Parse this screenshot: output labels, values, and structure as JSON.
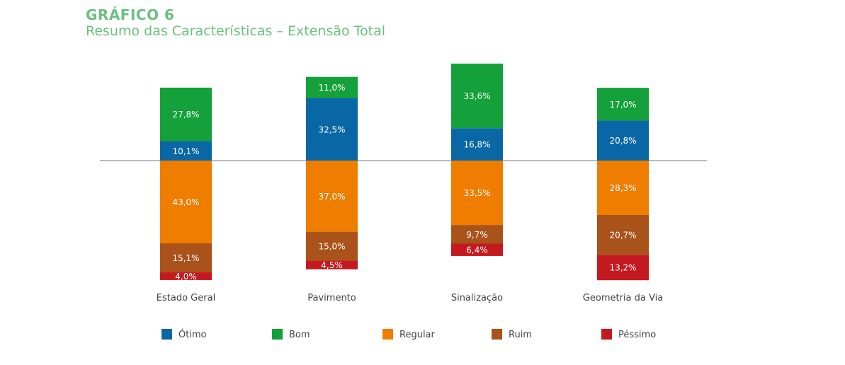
{
  "chart_data": {
    "type": "bar",
    "stacked": true,
    "diverging": true,
    "title": "GRÁFICO 6",
    "subtitle": "Resumo das Características – Extensão Total",
    "categories": [
      "Estado Geral",
      "Pavimento",
      "Sinalização",
      "Geometria da Via"
    ],
    "series": [
      {
        "name": "Ótimo",
        "color": "#0a67a5",
        "direction": "up",
        "values": [
          10.1,
          32.5,
          16.8,
          20.8
        ],
        "labels": [
          "10,1%",
          "32,5%",
          "16,8%",
          "20,8%"
        ]
      },
      {
        "name": "Bom",
        "color": "#14a03a",
        "direction": "up",
        "values": [
          27.8,
          11.0,
          33.6,
          17.0
        ],
        "labels": [
          "27,8%",
          "11,0%",
          "33,6%",
          "17,0%"
        ]
      },
      {
        "name": "Regular",
        "color": "#ee7d00",
        "direction": "down",
        "values": [
          43.0,
          37.0,
          33.5,
          28.3
        ],
        "labels": [
          "43,0%",
          "37,0%",
          "33,5%",
          "28,3%"
        ]
      },
      {
        "name": "Ruim",
        "color": "#a9521a",
        "direction": "down",
        "values": [
          15.1,
          15.0,
          9.7,
          20.7
        ],
        "labels": [
          "15,1%",
          "15,0%",
          "9,7%",
          "20,7%"
        ]
      },
      {
        "name": "Péssimo",
        "color": "#c4191f",
        "direction": "down",
        "values": [
          4.0,
          4.5,
          6.4,
          13.2
        ],
        "labels": [
          "4,0%",
          "4,5%",
          "6,4%",
          "13,2%"
        ]
      }
    ],
    "legend": "bottom",
    "grid": false
  }
}
